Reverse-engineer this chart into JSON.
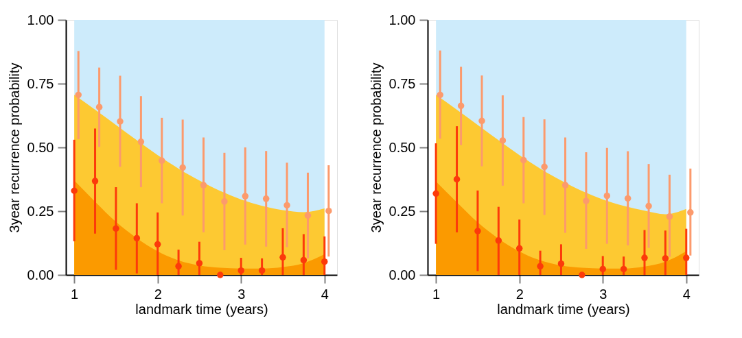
{
  "chart_data": [
    {
      "type": "scatter",
      "xlabel": "landmark time (years)",
      "ylabel": "3year recurrence probability",
      "xlim": [
        0.9,
        4.15
      ],
      "xticks": [
        1,
        2,
        3,
        4
      ],
      "ylim": [
        0,
        1
      ],
      "yticks": [
        {
          "value": 0,
          "label": "0.00"
        },
        {
          "value": 0.25,
          "label": "0.25"
        },
        {
          "value": 0.5,
          "label": "0.50"
        },
        {
          "value": 0.75,
          "label": "0.75"
        },
        {
          "value": 1,
          "label": "1.00"
        }
      ],
      "grid": false,
      "marker": "circle",
      "bands": [
        {
          "axis": "x",
          "from": 1,
          "to": 4,
          "color": "#cdebfb"
        }
      ],
      "series": [
        {
          "type": "area",
          "marker": "none",
          "color": "#fdc932",
          "x": [
            1,
            1.25,
            1.5,
            1.75,
            2,
            2.25,
            2.5,
            2.75,
            3,
            3.25,
            3.5,
            3.75,
            4
          ],
          "values": [
            0.706,
            0.648,
            0.588,
            0.528,
            0.47,
            0.417,
            0.37,
            0.329,
            0.296,
            0.271,
            0.254,
            0.246,
            0.261
          ]
        },
        {
          "type": "area",
          "marker": "none",
          "color": "#fb9a00",
          "x": [
            1,
            1.25,
            1.5,
            1.75,
            2,
            2.25,
            2.5,
            2.75,
            3,
            3.25,
            3.5,
            3.75,
            4
          ],
          "values": [
            0.37,
            0.287,
            0.208,
            0.144,
            0.093,
            0.057,
            0.037,
            0.028,
            0.025,
            0.025,
            0.031,
            0.046,
            0.081
          ]
        },
        {
          "color": "#fc9a6c",
          "x": [
            1.05,
            1.3,
            1.55,
            1.8,
            2.05,
            2.3,
            2.55,
            2.8,
            3.05,
            3.3,
            3.55,
            3.8,
            4.05
          ],
          "values": [
            0.706,
            0.658,
            0.602,
            0.522,
            0.448,
            0.421,
            0.352,
            0.288,
            0.309,
            0.299,
            0.273,
            0.233,
            0.251
          ],
          "errors": [
            [
              0.532,
              0.878
            ],
            [
              0.502,
              0.813
            ],
            [
              0.424,
              0.781
            ],
            [
              0.344,
              0.701
            ],
            [
              0.281,
              0.616
            ],
            [
              0.233,
              0.609
            ],
            [
              0.167,
              0.539
            ],
            [
              0.097,
              0.479
            ],
            [
              0.119,
              0.5
            ],
            [
              0.111,
              0.486
            ],
            [
              0.109,
              0.44
            ],
            [
              0.065,
              0.401
            ],
            [
              0.072,
              0.43
            ]
          ]
        },
        {
          "color": "#fc3a0a",
          "x": [
            1,
            1.25,
            1.5,
            1.75,
            2,
            2.25,
            2.5,
            2.75,
            3,
            3.25,
            3.5,
            3.75,
            4
          ],
          "values": [
            0.33,
            0.368,
            0.182,
            0.144,
            0.12,
            0.034,
            0.046,
            0.0,
            0.017,
            0.017,
            0.069,
            0.058,
            0.052
          ],
          "errors": [
            [
              0.132,
              0.53
            ],
            [
              0.162,
              0.574
            ],
            [
              0.02,
              0.344
            ],
            [
              0.006,
              0.281
            ],
            [
              0.0,
              0.245
            ],
            [
              0.0,
              0.099
            ],
            [
              0.0,
              0.13
            ],
            null,
            [
              0.0,
              0.067
            ],
            [
              0.0,
              0.065
            ],
            [
              0.0,
              0.183
            ],
            [
              0.0,
              0.16
            ],
            [
              0.0,
              0.151
            ]
          ]
        }
      ]
    },
    {
      "type": "scatter",
      "xlabel": "landmark time (years)",
      "ylabel": "3year recurrence probability",
      "xlim": [
        0.9,
        4.15
      ],
      "xticks": [
        1,
        2,
        3,
        4
      ],
      "ylim": [
        0,
        1
      ],
      "yticks": [
        {
          "value": 0,
          "label": "0.00"
        },
        {
          "value": 0.25,
          "label": "0.25"
        },
        {
          "value": 0.5,
          "label": "0.50"
        },
        {
          "value": 0.75,
          "label": "0.75"
        },
        {
          "value": 1,
          "label": "1.00"
        }
      ],
      "grid": false,
      "marker": "circle",
      "bands": [
        {
          "axis": "x",
          "from": 1,
          "to": 4,
          "color": "#cdebfb"
        }
      ],
      "series": [
        {
          "type": "area",
          "marker": "none",
          "color": "#fdc932",
          "x": [
            1,
            1.25,
            1.5,
            1.75,
            2,
            2.25,
            2.5,
            2.75,
            3,
            3.25,
            3.5,
            3.75,
            4
          ],
          "values": [
            0.706,
            0.648,
            0.588,
            0.528,
            0.47,
            0.417,
            0.37,
            0.329,
            0.296,
            0.271,
            0.252,
            0.238,
            0.259
          ]
        },
        {
          "type": "area",
          "marker": "none",
          "color": "#fb9a00",
          "x": [
            1,
            1.25,
            1.5,
            1.75,
            2,
            2.25,
            2.5,
            2.75,
            3,
            3.25,
            3.5,
            3.75,
            4
          ],
          "values": [
            0.366,
            0.285,
            0.206,
            0.142,
            0.092,
            0.057,
            0.037,
            0.028,
            0.025,
            0.025,
            0.033,
            0.052,
            0.093
          ]
        },
        {
          "color": "#fc9a6c",
          "x": [
            1.05,
            1.3,
            1.55,
            1.8,
            2.05,
            2.3,
            2.55,
            2.8,
            3.05,
            3.3,
            3.55,
            3.8,
            4.05
          ],
          "values": [
            0.706,
            0.663,
            0.604,
            0.527,
            0.45,
            0.424,
            0.352,
            0.29,
            0.31,
            0.3,
            0.27,
            0.229,
            0.245
          ],
          "errors": [
            [
              0.534,
              0.88
            ],
            [
              0.509,
              0.816
            ],
            [
              0.426,
              0.782
            ],
            [
              0.35,
              0.704
            ],
            [
              0.281,
              0.619
            ],
            [
              0.235,
              0.61
            ],
            [
              0.165,
              0.539
            ],
            [
              0.102,
              0.481
            ],
            [
              0.122,
              0.498
            ],
            [
              0.116,
              0.485
            ],
            [
              0.106,
              0.435
            ],
            [
              0.071,
              0.393
            ],
            [
              0.076,
              0.417
            ]
          ]
        },
        {
          "color": "#fc3a0a",
          "x": [
            1,
            1.25,
            1.5,
            1.75,
            2,
            2.25,
            2.5,
            2.75,
            3,
            3.25,
            3.5,
            3.75,
            4
          ],
          "values": [
            0.319,
            0.375,
            0.172,
            0.135,
            0.104,
            0.034,
            0.044,
            0.0,
            0.023,
            0.023,
            0.067,
            0.065,
            0.067
          ],
          "errors": [
            [
              0.122,
              0.516
            ],
            [
              0.167,
              0.583
            ],
            [
              0.015,
              0.331
            ],
            [
              0.0,
              0.267
            ],
            [
              0.0,
              0.217
            ],
            [
              0.0,
              0.095
            ],
            [
              0.0,
              0.12
            ],
            null,
            [
              0.0,
              0.074
            ],
            [
              0.0,
              0.072
            ],
            [
              0.0,
              0.176
            ],
            [
              0.0,
              0.174
            ],
            [
              0.0,
              0.181
            ]
          ]
        }
      ]
    }
  ]
}
